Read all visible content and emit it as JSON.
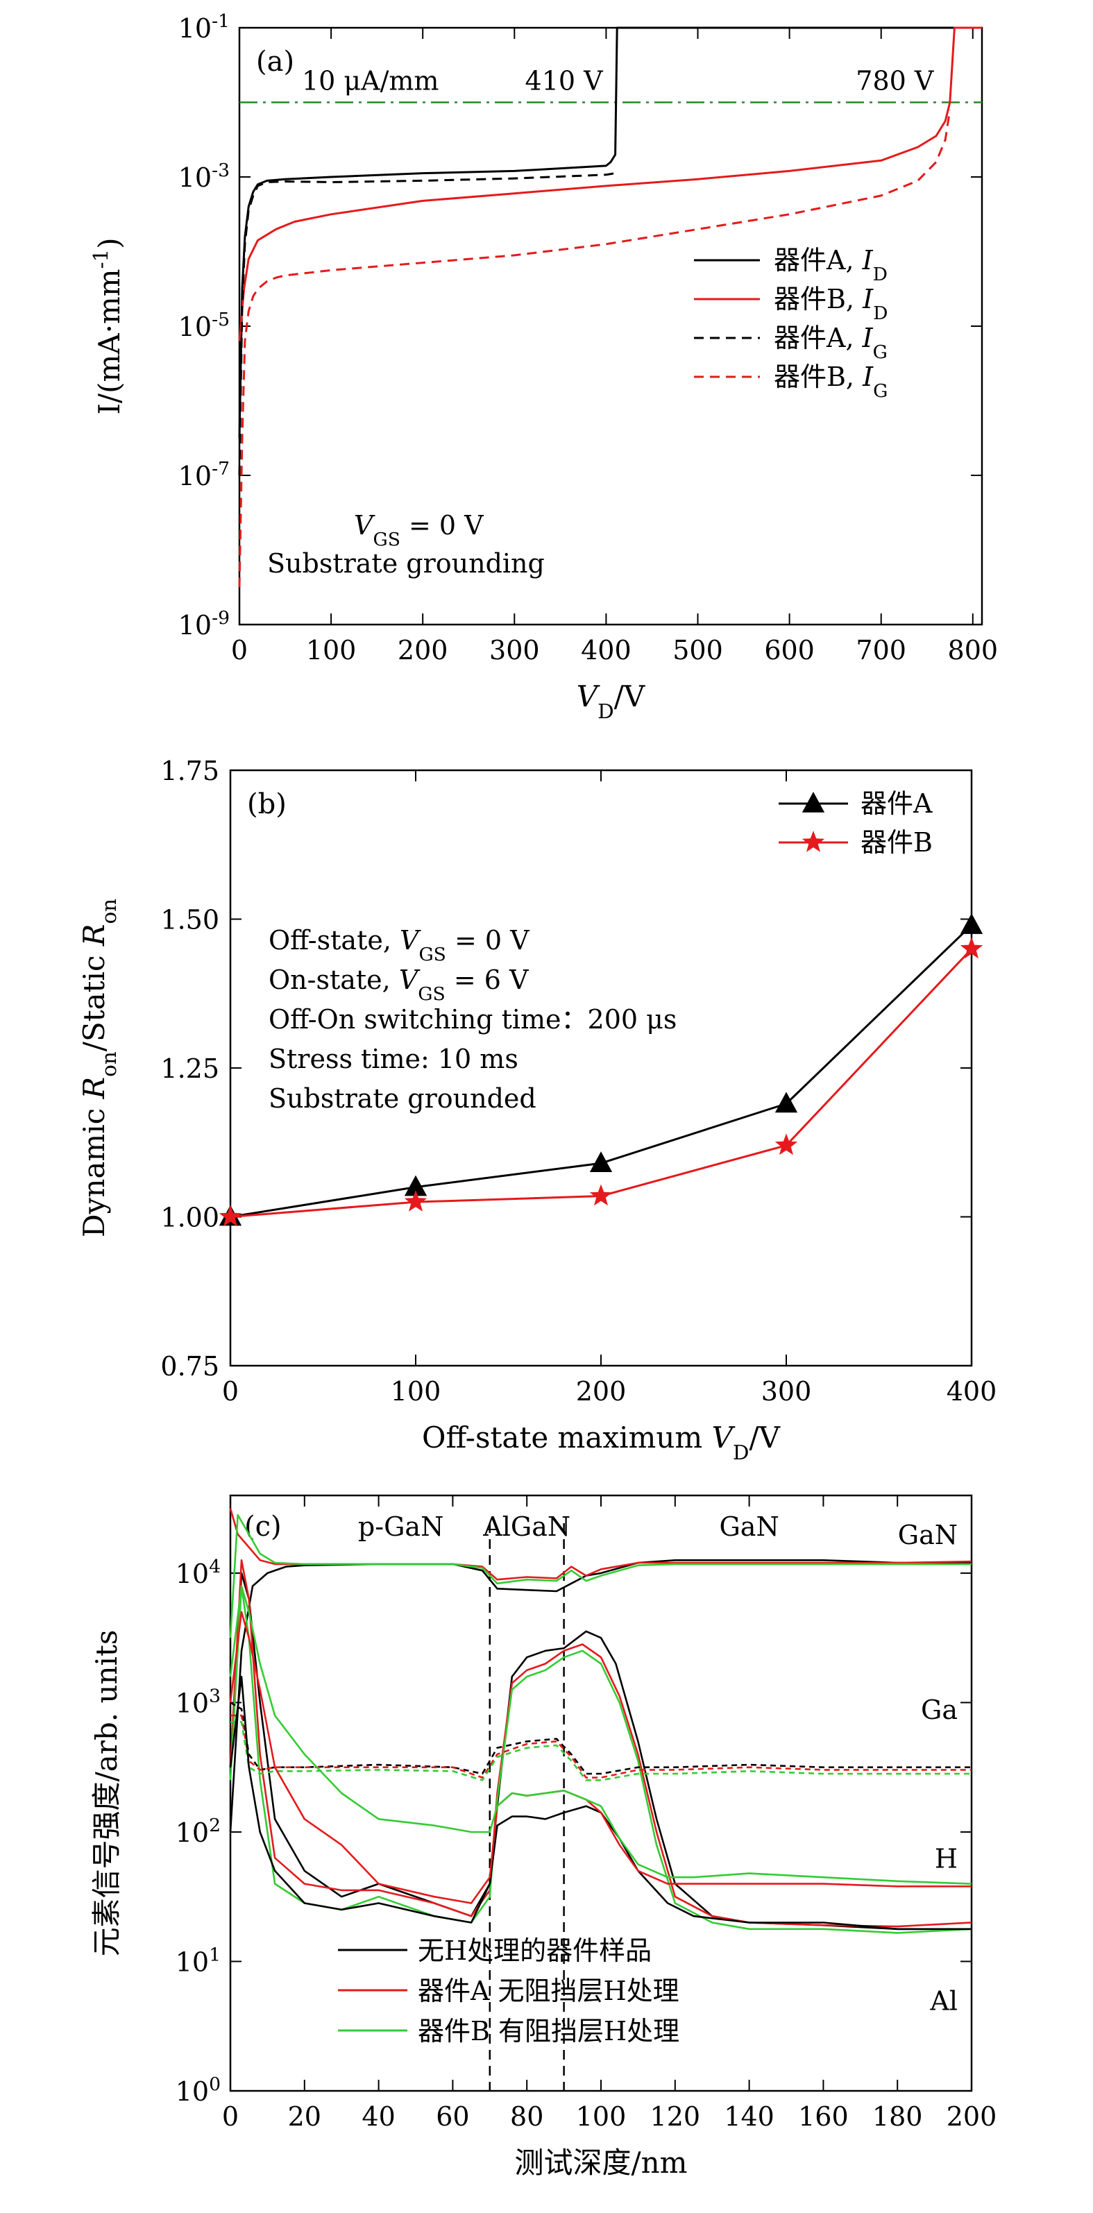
{
  "chart_data": [
    {
      "panel_label": "(a)",
      "type": "line",
      "xlabel": "V_D/V",
      "ylabel": "I/(mA·mm^-1)",
      "xlim": [
        0,
        810
      ],
      "ylim_log10": [
        -9,
        -1
      ],
      "yscale": "log",
      "xticks": [
        0,
        100,
        200,
        300,
        400,
        500,
        600,
        700,
        800
      ],
      "yticks_exp": [
        -9,
        -7,
        -5,
        -3,
        -1
      ],
      "threshold": {
        "value": 0.01,
        "label": "10 μA/mm",
        "color": "#228B22"
      },
      "annotations": [
        {
          "text": "410 V",
          "x": 410
        },
        {
          "text": "780 V",
          "x": 780
        }
      ],
      "conditions": [
        "V_GS = 0 V",
        "Substrate grounding"
      ],
      "legend_position": "right",
      "series": [
        {
          "name": "器件A, I_D",
          "color": "#000000",
          "dash": false,
          "x": [
            0,
            3,
            6,
            10,
            15,
            20,
            30,
            50,
            100,
            200,
            300,
            400,
            405,
            410,
            412,
            414,
            416,
            425,
            450,
            500,
            600,
            700,
            790,
            810
          ],
          "y": [
            -6.5,
            -4.5,
            -3.8,
            -3.4,
            -3.2,
            -3.1,
            -3.05,
            -3.03,
            -3.0,
            -2.95,
            -2.92,
            -2.85,
            -2.8,
            -2.7,
            -1.0,
            -1.0,
            -1.0,
            -1.0,
            -1.0,
            -1.0,
            -1.0,
            -1.0,
            -1.0,
            -1.0
          ]
        },
        {
          "name": "器件B, I_D",
          "color": "#E41A1C",
          "dash": false,
          "x": [
            0,
            5,
            10,
            20,
            40,
            60,
            100,
            200,
            300,
            400,
            500,
            600,
            700,
            740,
            760,
            770,
            775,
            780,
            785,
            790,
            810
          ],
          "y": [
            -5.2,
            -4.5,
            -4.1,
            -3.85,
            -3.7,
            -3.6,
            -3.5,
            -3.32,
            -3.22,
            -3.12,
            -3.03,
            -2.92,
            -2.78,
            -2.6,
            -2.45,
            -2.25,
            -2.0,
            -1.0,
            -1.0,
            -1.0,
            -1.0
          ]
        },
        {
          "name": "器件A, I_G",
          "color": "#000000",
          "dash": true,
          "x": [
            0,
            3,
            6,
            10,
            15,
            20,
            30,
            50,
            100,
            200,
            300,
            400,
            410
          ],
          "y": [
            -7.0,
            -4.7,
            -3.9,
            -3.45,
            -3.25,
            -3.12,
            -3.07,
            -3.06,
            -3.07,
            -3.05,
            -3.02,
            -2.97,
            -2.95
          ]
        },
        {
          "name": "器件B, I_G",
          "color": "#E41A1C",
          "dash": true,
          "x": [
            0,
            3,
            6,
            10,
            15,
            20,
            30,
            40,
            50,
            100,
            200,
            300,
            400,
            500,
            600,
            700,
            740,
            760,
            770,
            775
          ],
          "y": [
            -8.5,
            -6.5,
            -5.2,
            -4.8,
            -4.6,
            -4.5,
            -4.4,
            -4.35,
            -4.32,
            -4.25,
            -4.15,
            -4.05,
            -3.9,
            -3.7,
            -3.5,
            -3.25,
            -3.05,
            -2.8,
            -2.5,
            -2.1
          ]
        }
      ]
    },
    {
      "panel_label": "(b)",
      "type": "line",
      "xlabel": "Off-state maximum V_D/V",
      "ylabel": "Dynamic R_on/Static R_on",
      "xlim": [
        0,
        400
      ],
      "ylim": [
        0.75,
        1.75
      ],
      "xticks": [
        0,
        100,
        200,
        300,
        400
      ],
      "yticks": [
        0.75,
        1.0,
        1.25,
        1.5,
        1.75
      ],
      "conditions": [
        "Off-state, V_GS = 0 V",
        "On-state, V_GS = 6 V",
        "Off-On switching time：200 μs",
        "Stress time: 10 ms",
        "Substrate grounded"
      ],
      "legend_position": "top-right",
      "series": [
        {
          "name": "器件A",
          "color": "#000000",
          "marker": "triangle",
          "x": [
            0,
            100,
            200,
            300,
            400
          ],
          "y": [
            1.0,
            1.05,
            1.09,
            1.19,
            1.49
          ]
        },
        {
          "name": "器件B",
          "color": "#E41A1C",
          "marker": "star",
          "x": [
            0,
            100,
            200,
            300,
            400
          ],
          "y": [
            1.0,
            1.025,
            1.035,
            1.12,
            1.45
          ]
        }
      ]
    },
    {
      "panel_label": "(c)",
      "type": "line",
      "xlabel": "测试深度/nm",
      "ylabel": "元素信号强度/arb. units",
      "xlim": [
        0,
        200
      ],
      "ylim_log10": [
        0,
        4.6
      ],
      "yscale": "log",
      "xticks": [
        0,
        20,
        40,
        60,
        80,
        100,
        120,
        140,
        160,
        180,
        200
      ],
      "yticks_exp": [
        0,
        1,
        2,
        3,
        4
      ],
      "region_lines_x": [
        70,
        90
      ],
      "regions": [
        {
          "text": "p-GaN",
          "x": 46
        },
        {
          "text": "AlGaN",
          "x": 80
        },
        {
          "text": "GaN",
          "x": 140
        }
      ],
      "element_labels": [
        {
          "text": "GaN",
          "y_log10": 4.3
        },
        {
          "text": "Ga",
          "y_log10": 2.95
        },
        {
          "text": "H",
          "y_log10": 1.8
        },
        {
          "text": "Al",
          "y_log10": 0.7
        }
      ],
      "element_label_color": "#1F1FBF",
      "legend_position": "bottom-center",
      "legend": [
        {
          "name": "无H处理的器件样品",
          "color": "#000000"
        },
        {
          "name": "器件A 无阻挡层H处理",
          "color": "#E41A1C"
        },
        {
          "name": "器件B 有阻挡层H处理",
          "color": "#33CC33"
        }
      ],
      "series": [
        {
          "name": "GaN",
          "sample": 0,
          "color": "#000000",
          "dash": false,
          "x": [
            0,
            3,
            6,
            10,
            15,
            20,
            40,
            60,
            68,
            72,
            80,
            88,
            92,
            96,
            100,
            110,
            120,
            140,
            160,
            180,
            200
          ],
          "y": [
            2.0,
            3.4,
            3.9,
            4.0,
            4.05,
            4.06,
            4.07,
            4.07,
            4.02,
            3.88,
            3.87,
            3.86,
            3.92,
            3.98,
            4.0,
            4.08,
            4.1,
            4.1,
            4.1,
            4.08,
            4.08
          ]
        },
        {
          "name": "GaN",
          "sample": 1,
          "color": "#E41A1C",
          "dash": false,
          "x": [
            0,
            2,
            5,
            8,
            12,
            20,
            40,
            60,
            68,
            72,
            80,
            88,
            92,
            96,
            100,
            110,
            120,
            140,
            160,
            180,
            200
          ],
          "y": [
            4.5,
            4.3,
            4.2,
            4.1,
            4.07,
            4.07,
            4.07,
            4.07,
            4.05,
            3.95,
            3.97,
            3.96,
            4.05,
            3.98,
            4.03,
            4.08,
            4.08,
            4.08,
            4.08,
            4.08,
            4.09
          ]
        },
        {
          "name": "GaN",
          "sample": 2,
          "color": "#33CC33",
          "dash": false,
          "x": [
            0,
            2,
            5,
            8,
            12,
            20,
            40,
            60,
            68,
            72,
            80,
            88,
            92,
            96,
            100,
            110,
            120,
            140,
            160,
            180,
            200
          ],
          "y": [
            3.5,
            4.45,
            4.3,
            4.15,
            4.08,
            4.07,
            4.07,
            4.07,
            4.04,
            3.92,
            3.95,
            3.94,
            4.02,
            3.94,
            3.98,
            4.06,
            4.07,
            4.07,
            4.07,
            4.07,
            4.07
          ]
        },
        {
          "name": "Al",
          "sample": 0,
          "color": "#000000",
          "dash": false,
          "x": [
            0,
            3,
            5,
            8,
            12,
            20,
            30,
            40,
            55,
            65,
            70,
            72,
            76,
            80,
            85,
            90,
            96,
            100,
            104,
            110,
            115,
            120,
            130,
            140,
            160,
            180,
            200
          ],
          "y": [
            2.5,
            4.0,
            3.8,
            3.0,
            2.1,
            1.7,
            1.5,
            1.6,
            1.45,
            1.35,
            1.6,
            2.2,
            3.2,
            3.35,
            3.4,
            3.42,
            3.55,
            3.5,
            3.3,
            2.7,
            2.1,
            1.6,
            1.35,
            1.3,
            1.28,
            1.25,
            1.25
          ]
        },
        {
          "name": "Al",
          "sample": 1,
          "color": "#E41A1C",
          "dash": false,
          "x": [
            0,
            3,
            5,
            8,
            12,
            20,
            30,
            40,
            55,
            65,
            70,
            72,
            76,
            80,
            85,
            90,
            95,
            100,
            105,
            110,
            115,
            120,
            130,
            140,
            160,
            180,
            200
          ],
          "y": [
            2.5,
            4.1,
            3.8,
            2.6,
            1.8,
            1.6,
            1.55,
            1.55,
            1.45,
            1.35,
            1.55,
            2.3,
            3.15,
            3.25,
            3.3,
            3.4,
            3.45,
            3.35,
            3.05,
            2.6,
            2.0,
            1.5,
            1.35,
            1.3,
            1.28,
            1.27,
            1.3
          ]
        },
        {
          "name": "Al",
          "sample": 2,
          "color": "#33CC33",
          "dash": false,
          "x": [
            0,
            3,
            5,
            8,
            12,
            20,
            30,
            40,
            55,
            65,
            70,
            72,
            76,
            80,
            85,
            90,
            95,
            100,
            105,
            110,
            115,
            120,
            130,
            140,
            160,
            180,
            200
          ],
          "y": [
            2.4,
            3.9,
            3.5,
            2.4,
            1.6,
            1.45,
            1.4,
            1.5,
            1.35,
            1.3,
            1.5,
            2.25,
            3.1,
            3.2,
            3.25,
            3.35,
            3.4,
            3.3,
            3.0,
            2.55,
            1.9,
            1.45,
            1.3,
            1.25,
            1.25,
            1.22,
            1.25
          ]
        },
        {
          "name": "Ga",
          "sample": 0,
          "color": "#000000",
          "dash": true,
          "x": [
            0,
            3,
            5,
            8,
            12,
            20,
            40,
            60,
            68,
            72,
            80,
            88,
            92,
            96,
            100,
            110,
            120,
            140,
            160,
            180,
            200
          ],
          "y": [
            3.0,
            2.95,
            2.6,
            2.48,
            2.5,
            2.5,
            2.52,
            2.5,
            2.45,
            2.65,
            2.7,
            2.72,
            2.6,
            2.45,
            2.45,
            2.5,
            2.5,
            2.52,
            2.5,
            2.5,
            2.5
          ]
        },
        {
          "name": "Ga",
          "sample": 1,
          "color": "#E41A1C",
          "dash": true,
          "x": [
            0,
            3,
            5,
            8,
            12,
            20,
            40,
            60,
            68,
            72,
            80,
            88,
            92,
            96,
            100,
            110,
            120,
            140,
            160,
            180,
            200
          ],
          "y": [
            2.9,
            2.9,
            2.55,
            2.48,
            2.5,
            2.5,
            2.5,
            2.5,
            2.42,
            2.6,
            2.68,
            2.7,
            2.58,
            2.42,
            2.42,
            2.48,
            2.48,
            2.5,
            2.48,
            2.48,
            2.48
          ]
        },
        {
          "name": "Ga",
          "sample": 2,
          "color": "#33CC33",
          "dash": true,
          "x": [
            0,
            3,
            5,
            8,
            12,
            20,
            40,
            60,
            68,
            72,
            80,
            88,
            92,
            96,
            100,
            110,
            120,
            140,
            160,
            180,
            200
          ],
          "y": [
            2.85,
            2.85,
            2.5,
            2.45,
            2.47,
            2.47,
            2.48,
            2.47,
            2.4,
            2.58,
            2.65,
            2.67,
            2.55,
            2.4,
            2.4,
            2.45,
            2.45,
            2.47,
            2.45,
            2.45,
            2.45
          ]
        },
        {
          "name": "H",
          "sample": 0,
          "color": "#000000",
          "dash": false,
          "x": [
            0,
            3,
            5,
            8,
            12,
            20,
            30,
            40,
            55,
            65,
            70,
            72,
            76,
            80,
            85,
            90,
            96,
            100,
            105,
            110,
            118,
            125,
            140,
            160,
            180,
            200
          ],
          "y": [
            2.5,
            3.2,
            2.5,
            2.0,
            1.7,
            1.45,
            1.4,
            1.45,
            1.35,
            1.3,
            1.6,
            2.05,
            2.12,
            2.12,
            2.1,
            2.15,
            2.2,
            2.15,
            1.95,
            1.7,
            1.45,
            1.35,
            1.3,
            1.3,
            1.25,
            1.25
          ]
        },
        {
          "name": "H",
          "sample": 1,
          "color": "#E41A1C",
          "dash": false,
          "x": [
            0,
            3,
            5,
            8,
            12,
            20,
            30,
            40,
            55,
            65,
            70,
            72,
            76,
            80,
            85,
            90,
            96,
            100,
            105,
            110,
            118,
            125,
            140,
            160,
            180,
            200
          ],
          "y": [
            3.0,
            3.7,
            3.5,
            3.1,
            2.5,
            2.1,
            1.9,
            1.6,
            1.5,
            1.45,
            1.65,
            2.2,
            2.3,
            2.28,
            2.3,
            2.32,
            2.25,
            2.15,
            1.9,
            1.7,
            1.6,
            1.6,
            1.6,
            1.6,
            1.58,
            1.58
          ]
        },
        {
          "name": "H",
          "sample": 2,
          "color": "#33CC33",
          "dash": false,
          "x": [
            0,
            3,
            5,
            8,
            12,
            20,
            30,
            40,
            55,
            65,
            70,
            72,
            76,
            80,
            85,
            90,
            96,
            100,
            105,
            110,
            118,
            125,
            140,
            160,
            180,
            200
          ],
          "y": [
            3.2,
            3.9,
            3.7,
            3.3,
            2.9,
            2.6,
            2.3,
            2.1,
            2.05,
            2.0,
            2.0,
            2.2,
            2.3,
            2.28,
            2.3,
            2.32,
            2.25,
            2.2,
            1.95,
            1.75,
            1.65,
            1.65,
            1.68,
            1.65,
            1.62,
            1.6
          ]
        }
      ]
    }
  ]
}
